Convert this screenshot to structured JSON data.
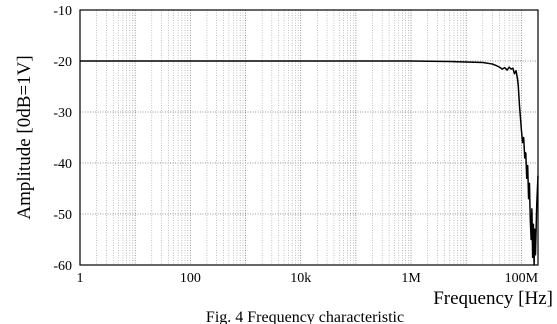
{
  "chart_data": {
    "type": "line",
    "title": "",
    "caption": "Fig. 4 Frequency characteristic",
    "xlabel": "Frequency [Hz]",
    "ylabel": "Amplitude [0dB=1V]",
    "xscale": "log",
    "xlim": [
      1,
      200000000
    ],
    "ylim": [
      -60,
      -10
    ],
    "grid": true,
    "legend": "none",
    "x_ticks": [
      {
        "value": 1,
        "label": "1"
      },
      {
        "value": 100,
        "label": "100"
      },
      {
        "value": 10000,
        "label": "10k"
      },
      {
        "value": 1000000,
        "label": "1M"
      },
      {
        "value": 100000000,
        "label": "100M"
      }
    ],
    "y_ticks": [
      {
        "value": -10,
        "label": "-10"
      },
      {
        "value": -20,
        "label": "-20"
      },
      {
        "value": -30,
        "label": "-30"
      },
      {
        "value": -40,
        "label": "-40"
      },
      {
        "value": -50,
        "label": "-50"
      },
      {
        "value": -60,
        "label": "-60"
      }
    ],
    "series": [
      {
        "color": "#000000",
        "x": [
          1,
          10,
          100,
          1000,
          10000,
          100000,
          1000000,
          5000000,
          10000000,
          20000000,
          30000000,
          35000000,
          40000000,
          45000000,
          50000000,
          55000000,
          60000000,
          65000000,
          70000000,
          75000000,
          80000000,
          85000000,
          88000000,
          92000000,
          96000000,
          100000000,
          105000000,
          110000000,
          115000000,
          120000000,
          125000000,
          130000000,
          135000000,
          140000000,
          145000000,
          150000000,
          155000000,
          160000000,
          165000000,
          170000000,
          175000000,
          180000000,
          190000000,
          200000000
        ],
        "y": [
          -20,
          -20,
          -20,
          -20,
          -20,
          -20,
          -20,
          -20.1,
          -20.2,
          -20.3,
          -20.6,
          -20.9,
          -21.2,
          -21.6,
          -21.3,
          -21.8,
          -21.2,
          -21.6,
          -21.4,
          -22.5,
          -21.9,
          -23.5,
          -25.0,
          -28.5,
          -31.0,
          -33.5,
          -36.0,
          -35.0,
          -39.0,
          -38.0,
          -43.0,
          -40.5,
          -47.0,
          -44.0,
          -51.0,
          -55.0,
          -49.0,
          -58.5,
          -52.0,
          -60.0,
          -53.0,
          -58.0,
          -48.0,
          -42.5
        ]
      }
    ]
  }
}
